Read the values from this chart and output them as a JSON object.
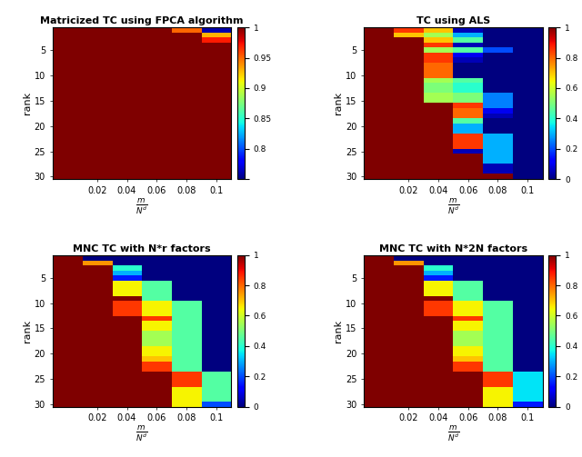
{
  "titles": [
    "Matricized TC using FPCA algorithm",
    "TC using ALS",
    "MNC TC with N*r factors",
    "MNC TC with N*2N factors"
  ],
  "xlabel": "$\\frac{m}{N^d}$",
  "ylabel": "rank",
  "x_tick_labels": [
    "0.02",
    "0.04",
    "0.06",
    "0.08",
    "0.1"
  ],
  "y_tick_labels": [
    "5",
    "10",
    "15",
    "20",
    "25",
    "30"
  ],
  "vmin_fpca": 0.75,
  "vmax_fpca": 1.0,
  "vmin_rest": 0.0,
  "vmax_rest": 1.0,
  "cbar_ticks_fpca": [
    0.75,
    0.8,
    0.85,
    0.9,
    0.95,
    1.0
  ],
  "cbar_tick_labels_fpca": [
    "",
    "0.8",
    "0.85",
    "0.9",
    "0.95",
    "1"
  ],
  "cbar_ticks_rest": [
    0.0,
    0.2,
    0.4,
    0.6,
    0.8,
    1.0
  ],
  "cbar_tick_labels_rest": [
    "0",
    "0.2",
    "0.4",
    "0.6",
    "0.8",
    "1"
  ]
}
